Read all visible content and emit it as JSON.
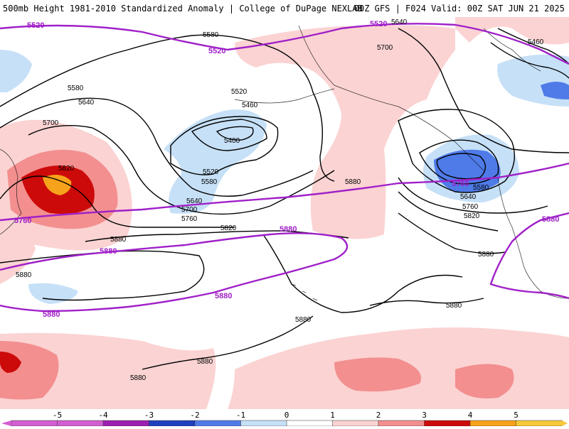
{
  "header": {
    "left_title": "500mb Height 1981-2010 Standardized Anomaly | College of DuPage NEXLAB",
    "right_title": "00Z GFS | F024 Valid: 00Z SAT JUN 21 2025"
  },
  "colors": {
    "neg5": "#d25fd2",
    "neg4": "#9b1fb0",
    "neg3": "#1f3fbf",
    "neg2": "#4f7be8",
    "neg1": "#c6e0f7",
    "zero": "#ffffff",
    "pos1": "#fbd3d3",
    "pos2": "#f38f8f",
    "pos3": "#cc0a0a",
    "pos4": "#f7a21b",
    "pos5": "#f7c93a",
    "height_contour": "#000000",
    "highlight_contour": "#a020c8"
  },
  "contour_labels": {
    "black": [
      "5580",
      "5460",
      "5580",
      "5640",
      "5700",
      "5520",
      "5460",
      "5400",
      "5520",
      "5580",
      "5640",
      "5700",
      "5760",
      "5820",
      "5880",
      "5880",
      "5700",
      "5640",
      "5880",
      "5580",
      "5640",
      "5760",
      "5820",
      "5880",
      "5880",
      "5880",
      "5880",
      "5880",
      "5820"
    ],
    "purple": [
      "5520",
      "5520",
      "5520",
      "5760",
      "5880",
      "5880",
      "5760",
      "5880",
      "5880"
    ]
  },
  "colorbar": {
    "ticks": [
      "-5",
      "-4",
      "-3",
      "-2",
      "-1",
      "0",
      "1",
      "2",
      "3",
      "4",
      "5"
    ]
  }
}
